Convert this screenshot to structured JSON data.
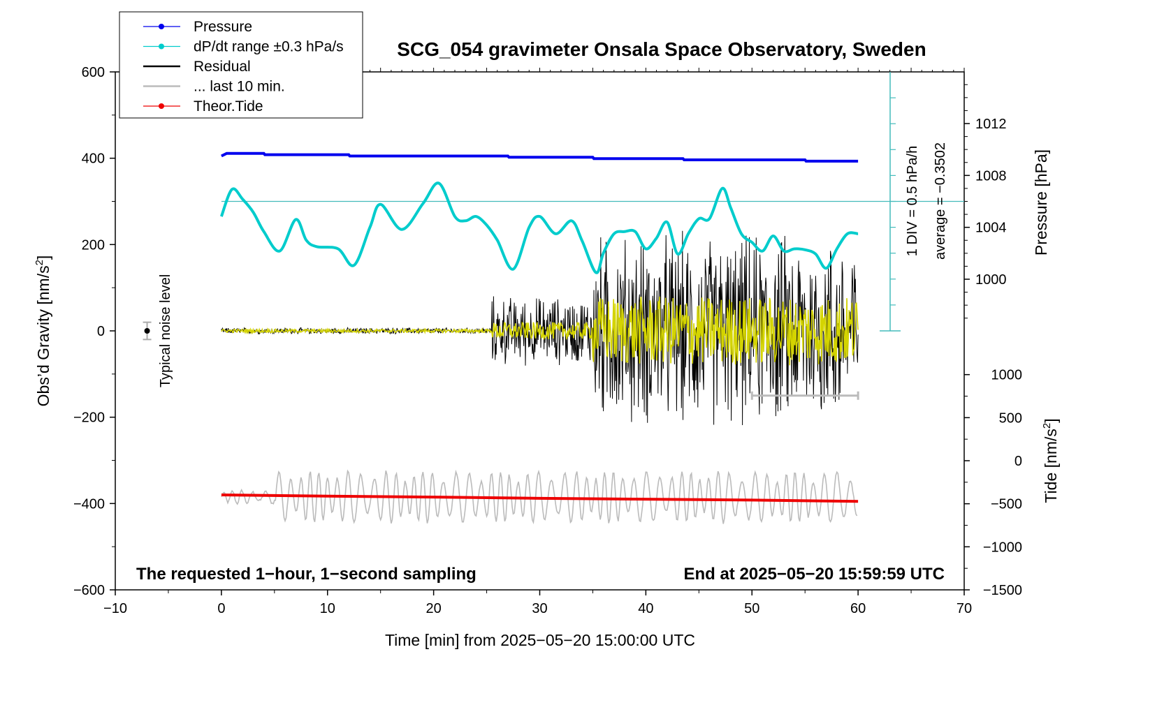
{
  "chart_data": {
    "type": "line",
    "title": "SCG_054 gravimeter Onsala Space Observatory, Sweden",
    "xlabel": "Time [min] from 2025−05−20 15:00:00 UTC",
    "ylabel_left": "Obs’d Gravity [nm/s",
    "ylabel_left_sup": "2",
    "ylabel_left_end": "]",
    "ylabel_right_pressure": "Pressure [hPa]",
    "ylabel_right_tide": "Tide [nm/s",
    "ylabel_right_tide_sup": "2",
    "ylabel_right_tide_end": "]",
    "xlim": [
      -10,
      70
    ],
    "ylim_left": [
      -600,
      600
    ],
    "x_ticks": [
      "−10",
      "0",
      "10",
      "20",
      "30",
      "40",
      "50",
      "60",
      "70"
    ],
    "x_tick_values": [
      -10,
      0,
      10,
      20,
      30,
      40,
      50,
      60,
      70
    ],
    "y_left_ticks": [
      "600",
      "400",
      "200",
      "0",
      "−200",
      "−400",
      "−600"
    ],
    "y_left_tick_values": [
      600,
      400,
      200,
      0,
      -200,
      -400,
      -600
    ],
    "pressure_axis": {
      "ticks": [
        "1012",
        "1008",
        "1004",
        "1000"
      ],
      "tick_values": [
        1012,
        1008,
        1004,
        1000
      ],
      "range_hint": [
        1000,
        1012
      ]
    },
    "tide_axis": {
      "ticks": [
        "1000",
        "500",
        "0",
        "−500",
        "−1000",
        "−1500"
      ],
      "tick_values": [
        1000,
        500,
        0,
        -500,
        -1000,
        -1500
      ]
    },
    "dpdt_scale": {
      "label_div": "1 DIV = 0.5 hPa/h",
      "label_avg": "average = −0.3502",
      "divisions": 10
    },
    "noise_marker": {
      "label": "Typical noise level",
      "x": -7,
      "y": 0,
      "err": 20
    },
    "annotations": {
      "bottom_left": "The requested 1−hour, 1−second sampling",
      "bottom_right": "End at 2025−05−20 15:59:59 UTC"
    },
    "legend": {
      "placement": "top-left",
      "entries": [
        {
          "label": "Pressure",
          "color": "#0000ee",
          "marker": true
        },
        {
          "label": "dP/dt range ±0.3 hPa/s",
          "color": "#00cccc",
          "marker": true
        },
        {
          "label": "Residual",
          "color": "#000000",
          "marker": false
        },
        {
          "label": "... last 10 min.",
          "color": "#bbbbbb",
          "marker": false
        },
        {
          "label": "Theor.Tide",
          "color": "#ee0000",
          "marker": true
        }
      ]
    },
    "series": [
      {
        "name": "Pressure",
        "color": "#0000ee",
        "unit": "hPa",
        "x": [
          0,
          0.5,
          4,
          4.1,
          12,
          12.1,
          27,
          27.1,
          35,
          35.1,
          43.5,
          43.6,
          55,
          55.1,
          60
        ],
        "values": [
          1009.5,
          1009.7,
          1009.7,
          1009.6,
          1009.6,
          1009.5,
          1009.5,
          1009.4,
          1009.4,
          1009.3,
          1009.3,
          1009.2,
          1009.2,
          1009.1,
          1009.1
        ]
      },
      {
        "name": "dP/dt",
        "color": "#00cccc",
        "unit": "gravity-axis equivalent",
        "x": [
          0,
          1,
          2,
          3,
          4,
          5.5,
          7,
          8,
          9,
          11,
          12.5,
          14,
          15,
          17,
          19,
          20.5,
          22,
          23,
          24,
          25,
          26,
          27.5,
          29,
          30,
          31.5,
          33,
          34,
          35.3,
          36,
          37,
          38,
          39,
          40,
          41,
          42,
          43,
          44,
          45,
          46,
          47.2,
          48,
          49,
          50,
          51,
          52,
          53,
          54,
          55,
          56,
          57,
          58,
          59,
          60
        ],
        "values": [
          265,
          328,
          305,
          275,
          230,
          185,
          258,
          210,
          195,
          190,
          152,
          240,
          293,
          235,
          295,
          342,
          265,
          255,
          265,
          245,
          210,
          143,
          240,
          265,
          225,
          255,
          208,
          135,
          180,
          225,
          230,
          230,
          190,
          215,
          252,
          178,
          225,
          260,
          260,
          330,
          285,
          225,
          205,
          185,
          220,
          185,
          190,
          188,
          178,
          145,
          190,
          225,
          225
        ]
      },
      {
        "name": "Residual",
        "color": "#000000",
        "unit": "nm/s^2",
        "envelope": [
          {
            "x_range": [
              0,
              25.5
            ],
            "amplitude": 8
          },
          {
            "x_range": [
              25.5,
              35
            ],
            "amplitude": 90
          },
          {
            "x_range": [
              35,
              60
            ],
            "amplitude": 250
          }
        ],
        "y_max": 290,
        "y_min": -290
      },
      {
        "name": "Residual (filtered, yellow)",
        "color": "#d4d400",
        "unit": "nm/s^2",
        "envelope": [
          {
            "x_range": [
              0,
              25.5
            ],
            "amplitude": 4
          },
          {
            "x_range": [
              25.5,
              35
            ],
            "amplitude": 20
          },
          {
            "x_range": [
              35,
              60
            ],
            "amplitude": 80
          }
        ]
      },
      {
        "name": "... last 10 min.",
        "color": "#bbbbbb",
        "unit": "nm/s^2 (offset)",
        "center": -385,
        "amplitude": 60,
        "x_range": [
          0,
          60
        ]
      },
      {
        "name": "Theor.Tide",
        "color": "#ee0000",
        "unit": "nm/s^2 (tide axis)",
        "x": [
          0,
          10,
          20,
          30,
          40,
          50,
          60
        ],
        "values": [
          -380,
          -383,
          -385,
          -388,
          -390,
          -392,
          -395
        ]
      }
    ],
    "last10_bar": {
      "x": [
        50,
        60
      ],
      "y": -150,
      "color": "#bbbbbb"
    },
    "dpdt_reference_y": 300,
    "grid": false
  }
}
